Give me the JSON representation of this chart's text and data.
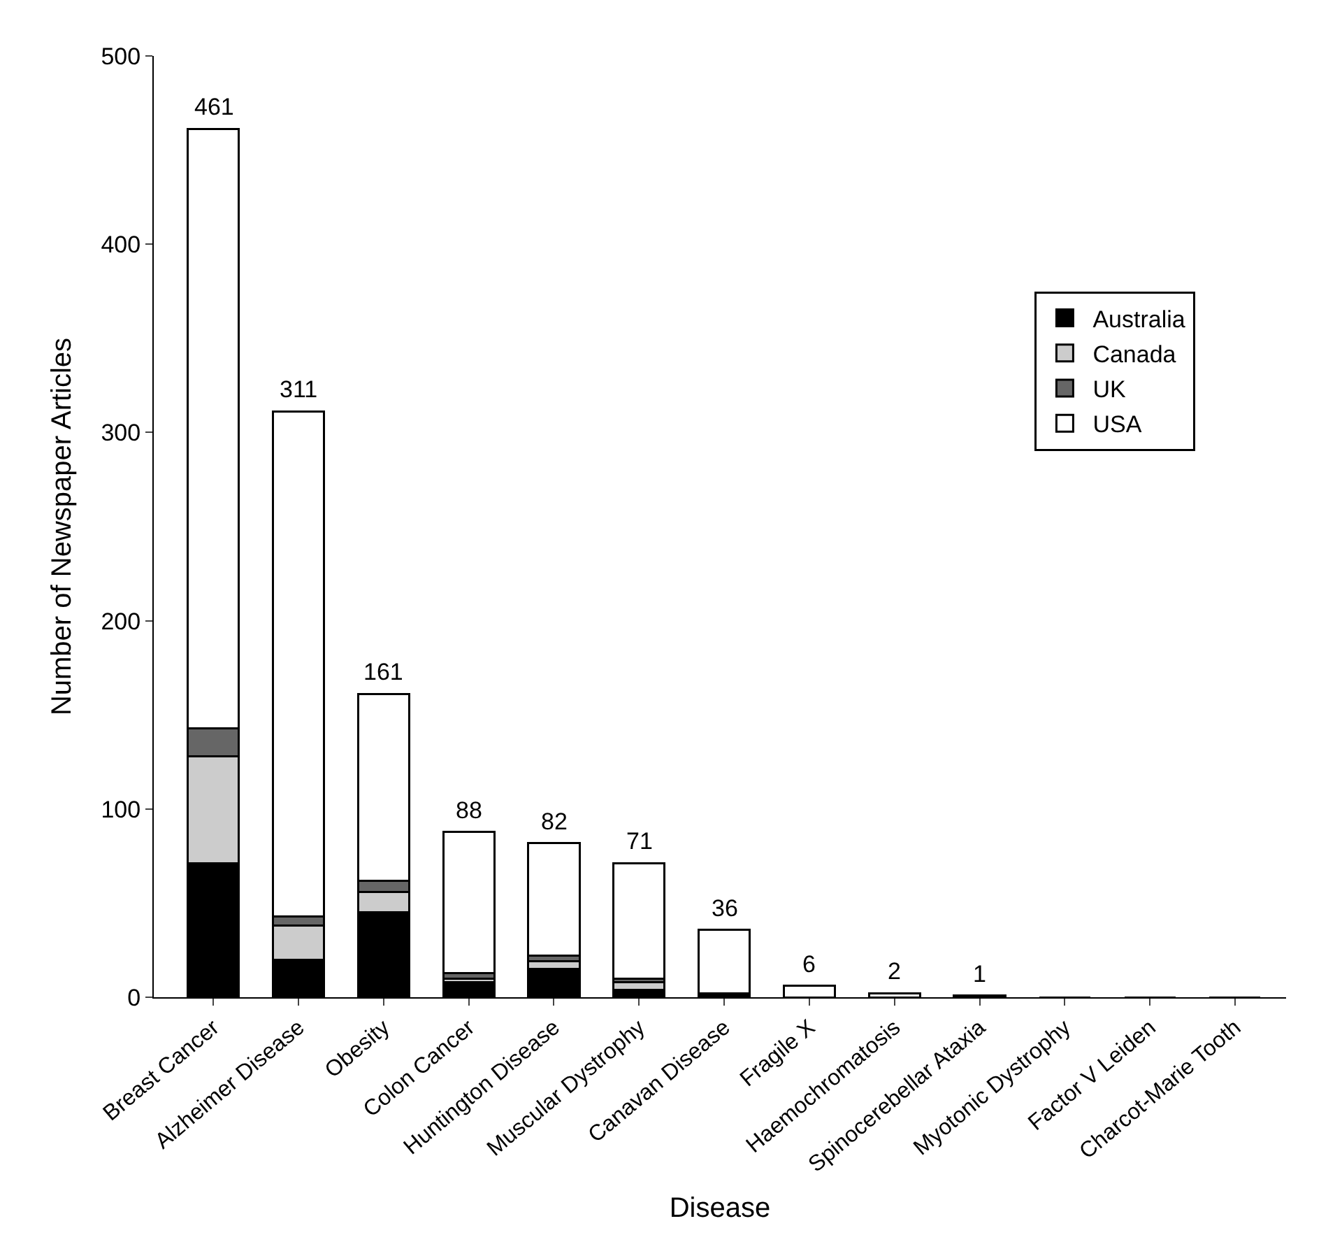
{
  "chart_data": {
    "type": "bar",
    "stacked": true,
    "xlabel": "Disease",
    "ylabel": "Number of Newspaper Articles",
    "categories": [
      "Breast Cancer",
      "Alzheimer Disease",
      "Obesity",
      "Colon Cancer",
      "Huntington Disease",
      "Muscular Dystrophy",
      "Canavan Disease",
      "Fragile X",
      "Haemochromatosis",
      "Spinocerebellar Ataxia",
      "Myotonic Dystrophy",
      "Factor V Leiden",
      "Charcot-Marie Tooth"
    ],
    "series": [
      {
        "name": "Australia",
        "color": "#000000",
        "values": [
          71,
          20,
          45,
          8,
          15,
          4,
          2,
          0,
          0,
          0,
          0,
          0,
          0
        ]
      },
      {
        "name": "Canada",
        "color": "#cccccc",
        "values": [
          57,
          18,
          11,
          2,
          4,
          4,
          0,
          0,
          0,
          0,
          0,
          0,
          0
        ]
      },
      {
        "name": "UK",
        "color": "#666666",
        "values": [
          15,
          5,
          6,
          3,
          3,
          2,
          0,
          0,
          0,
          0,
          0,
          0,
          0
        ]
      },
      {
        "name": "USA",
        "color": "#ffffff",
        "values": [
          318,
          268,
          99,
          75,
          60,
          61,
          34,
          6,
          2,
          1,
          0,
          0,
          0
        ]
      }
    ],
    "totals": [
      "461",
      "311",
      "161",
      "88",
      "82",
      "71",
      "36",
      "6",
      "2",
      "1",
      null,
      null,
      null
    ],
    "ylim": [
      0,
      500
    ],
    "yticks": [
      0,
      100,
      200,
      300,
      400,
      500
    ],
    "legend": "top right"
  }
}
